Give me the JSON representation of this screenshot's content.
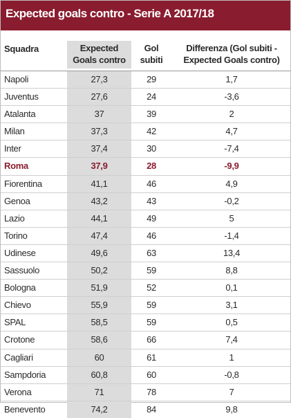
{
  "title": "Expected goals contro - Serie A 2017/18",
  "columns": {
    "team": "Squadra",
    "expected_1": "Expected",
    "expected_2": "Goals contro",
    "gol_1": "Gol",
    "gol_2": "subiti",
    "diff_1": "Differenza (Gol subiti -",
    "diff_2": "Expected Goals contro)"
  },
  "highlight_color": "#8a1c2f",
  "highlight_team": "Roma",
  "rows": [
    {
      "team": "Napoli",
      "expected": "27,3",
      "gol": "29",
      "diff": "1,7"
    },
    {
      "team": "Juventus",
      "expected": "27,6",
      "gol": "24",
      "diff": "-3,6"
    },
    {
      "team": "Atalanta",
      "expected": "37",
      "gol": "39",
      "diff": "2"
    },
    {
      "team": "Milan",
      "expected": "37,3",
      "gol": "42",
      "diff": "4,7"
    },
    {
      "team": "Inter",
      "expected": "37,4",
      "gol": "30",
      "diff": "-7,4"
    },
    {
      "team": "Roma",
      "expected": "37,9",
      "gol": "28",
      "diff": "-9,9"
    },
    {
      "team": "Fiorentina",
      "expected": "41,1",
      "gol": "46",
      "diff": "4,9"
    },
    {
      "team": "Genoa",
      "expected": "43,2",
      "gol": "43",
      "diff": "-0,2"
    },
    {
      "team": "Lazio",
      "expected": "44,1",
      "gol": "49",
      "diff": "5"
    },
    {
      "team": "Torino",
      "expected": "47,4",
      "gol": "46",
      "diff": "-1,4"
    },
    {
      "team": "Udinese",
      "expected": "49,6",
      "gol": "63",
      "diff": "13,4"
    },
    {
      "team": "Sassuolo",
      "expected": "50,2",
      "gol": "59",
      "diff": "8,8"
    },
    {
      "team": "Bologna",
      "expected": "51,9",
      "gol": "52",
      "diff": "0,1"
    },
    {
      "team": "Chievo",
      "expected": "55,9",
      "gol": "59",
      "diff": "3,1"
    },
    {
      "team": "SPAL",
      "expected": "58,5",
      "gol": "59",
      "diff": "0,5"
    },
    {
      "team": "Crotone",
      "expected": "58,6",
      "gol": "66",
      "diff": "7,4"
    },
    {
      "team": "Cagliari",
      "expected": "60",
      "gol": "61",
      "diff": "1"
    },
    {
      "team": "Sampdoria",
      "expected": "60,8",
      "gol": "60",
      "diff": "-0,8"
    },
    {
      "team": "Verona",
      "expected": "71",
      "gol": "78",
      "diff": "7"
    },
    {
      "team": "Benevento",
      "expected": "74,2",
      "gol": "84",
      "diff": "9,8"
    }
  ]
}
